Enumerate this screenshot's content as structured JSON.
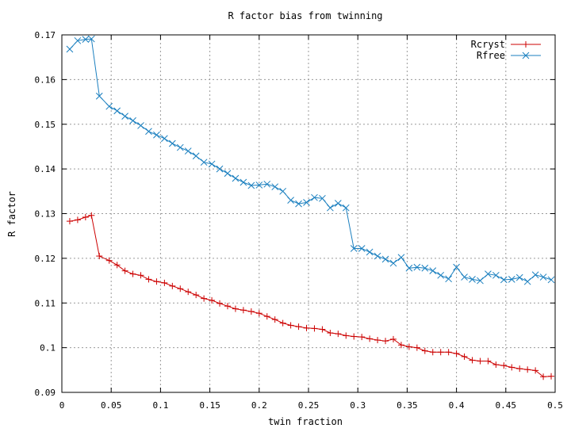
{
  "chart_data": {
    "type": "line",
    "title": "R factor bias from twinning",
    "xlabel": "twin fraction",
    "ylabel": "R factor",
    "xlim": [
      0,
      0.5
    ],
    "ylim": [
      0.09,
      0.17
    ],
    "x_ticks": [
      0,
      0.05,
      0.1,
      0.15,
      0.2,
      0.25,
      0.3,
      0.35,
      0.4,
      0.45,
      0.5
    ],
    "x_tick_labels": [
      "0",
      "0.05",
      "0.1",
      "0.15",
      "0.2",
      "0.25",
      "0.3",
      "0.35",
      "0.4",
      "0.45",
      "0.5"
    ],
    "y_ticks": [
      0.09,
      0.1,
      0.11,
      0.12,
      0.13,
      0.14,
      0.15,
      0.16,
      0.17
    ],
    "y_tick_labels": [
      "0.09",
      "0.1",
      "0.11",
      "0.12",
      "0.13",
      "0.14",
      "0.15",
      "0.16",
      "0.17"
    ],
    "grid": true,
    "legend_position": "top-right",
    "x": [
      0.008,
      0.016,
      0.024,
      0.03,
      0.038,
      0.048,
      0.056,
      0.064,
      0.072,
      0.08,
      0.088,
      0.096,
      0.104,
      0.112,
      0.12,
      0.128,
      0.136,
      0.144,
      0.152,
      0.16,
      0.168,
      0.176,
      0.184,
      0.192,
      0.2,
      0.208,
      0.216,
      0.224,
      0.232,
      0.24,
      0.248,
      0.256,
      0.264,
      0.272,
      0.28,
      0.288,
      0.296,
      0.304,
      0.312,
      0.32,
      0.328,
      0.336,
      0.344,
      0.352,
      0.36,
      0.368,
      0.376,
      0.384,
      0.392,
      0.4,
      0.408,
      0.416,
      0.424,
      0.432,
      0.44,
      0.448,
      0.456,
      0.464,
      0.472,
      0.48,
      0.488,
      0.496
    ],
    "series": [
      {
        "name": "Rcryst",
        "color": "#cc0000",
        "marker": "plus",
        "values": [
          0.1283,
          0.1286,
          0.1292,
          0.1296,
          0.1205,
          0.1195,
          0.1185,
          0.1172,
          0.1165,
          0.1162,
          0.1153,
          0.1148,
          0.1145,
          0.1138,
          0.1132,
          0.1125,
          0.1118,
          0.111,
          0.1106,
          0.1099,
          0.1093,
          0.1087,
          0.1084,
          0.1081,
          0.1077,
          0.107,
          0.1063,
          0.1055,
          0.105,
          0.1047,
          0.1044,
          0.1043,
          0.1041,
          0.1033,
          0.1031,
          0.1027,
          0.1025,
          0.1024,
          0.102,
          0.1017,
          0.1015,
          0.1019,
          0.1006,
          0.1002,
          0.1,
          0.0993,
          0.099,
          0.099,
          0.099,
          0.0987,
          0.098,
          0.0972,
          0.097,
          0.097,
          0.0962,
          0.096,
          0.0956,
          0.0953,
          0.0951,
          0.0949,
          0.0935,
          0.0936
        ]
      },
      {
        "name": "Rfree",
        "color": "#1a7fbf",
        "marker": "cross",
        "values": [
          0.1668,
          0.1687,
          0.169,
          0.1691,
          0.1563,
          0.154,
          0.153,
          0.1518,
          0.1508,
          0.1497,
          0.1484,
          0.1476,
          0.1468,
          0.1457,
          0.1448,
          0.144,
          0.1429,
          0.1415,
          0.1411,
          0.14,
          0.139,
          0.1379,
          0.137,
          0.1363,
          0.1364,
          0.1366,
          0.136,
          0.135,
          0.133,
          0.1322,
          0.1325,
          0.1336,
          0.1334,
          0.1313,
          0.1323,
          0.1313,
          0.1222,
          0.1222,
          0.1214,
          0.1205,
          0.1198,
          0.1189,
          0.1202,
          0.1178,
          0.118,
          0.1178,
          0.1172,
          0.1162,
          0.1154,
          0.118,
          0.1158,
          0.1153,
          0.115,
          0.1165,
          0.1162,
          0.1152,
          0.1153,
          0.1157,
          0.1148,
          0.1163,
          0.1158,
          0.1152
        ]
      }
    ]
  }
}
